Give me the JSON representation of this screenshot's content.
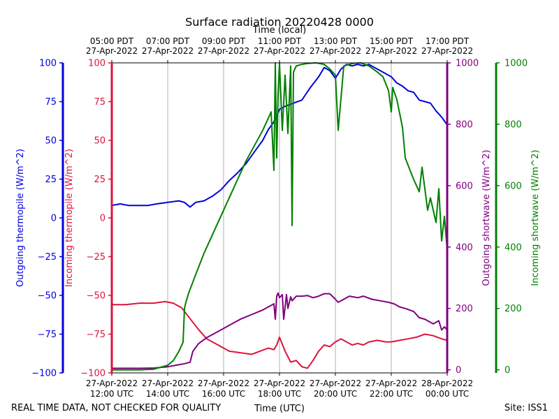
{
  "chart_data": {
    "type": "line",
    "title": "Surface radiation 20220428 0000",
    "top_axis_label": "Time (local)",
    "xlabel": "Time (UTC)",
    "x_unit": "hours UTC (27-Apr-2022)",
    "xlim": [
      12,
      24
    ],
    "top_ticks": [
      {
        "x": 12,
        "line1": "05:00 PDT",
        "line2": "27-Apr-2022"
      },
      {
        "x": 14,
        "line1": "07:00 PDT",
        "line2": "27-Apr-2022"
      },
      {
        "x": 16,
        "line1": "09:00 PDT",
        "line2": "27-Apr-2022"
      },
      {
        "x": 18,
        "line1": "11:00 PDT",
        "line2": "27-Apr-2022"
      },
      {
        "x": 20,
        "line1": "13:00 PDT",
        "line2": "27-Apr-2022"
      },
      {
        "x": 22,
        "line1": "15:00 PDT",
        "line2": "27-Apr-2022"
      },
      {
        "x": 24,
        "line1": "17:00 PDT",
        "line2": "27-Apr-2022"
      }
    ],
    "bottom_ticks": [
      {
        "x": 12,
        "line1": "27-Apr-2022",
        "line2": "12:00 UTC"
      },
      {
        "x": 14,
        "line1": "27-Apr-2022",
        "line2": "14:00 UTC"
      },
      {
        "x": 16,
        "line1": "27-Apr-2022",
        "line2": "16:00 UTC"
      },
      {
        "x": 18,
        "line1": "27-Apr-2022",
        "line2": "18:00 UTC"
      },
      {
        "x": 20,
        "line1": "27-Apr-2022",
        "line2": "20:00 UTC"
      },
      {
        "x": 22,
        "line1": "27-Apr-2022",
        "line2": "22:00 UTC"
      },
      {
        "x": 24,
        "line1": "28-Apr-2022",
        "line2": "00:00 UTC"
      }
    ],
    "axes": [
      {
        "id": "outgoing_thermopile",
        "label": "Outgoing thermopile (W/m^2)",
        "color": "#0000dd",
        "range": [
          -100,
          100
        ],
        "ticks": [
          "100",
          "75",
          "50",
          "25",
          "0",
          "−25",
          "−50",
          "−75",
          "−100"
        ],
        "tick_values": [
          100,
          75,
          50,
          25,
          0,
          -25,
          -50,
          -75,
          -100
        ]
      },
      {
        "id": "incoming_thermopile",
        "label": "Incoming thermopile (W/m^2)",
        "color": "#dc143c",
        "range": [
          -100,
          100
        ],
        "ticks": [
          "100",
          "75",
          "50",
          "25",
          "0",
          "−25",
          "−50",
          "−75",
          "−100"
        ],
        "tick_values": [
          100,
          75,
          50,
          25,
          0,
          -25,
          -50,
          -75,
          -100
        ]
      },
      {
        "id": "outgoing_shortwave",
        "label": "Outgoing shortwave (W/m^2)",
        "color": "#800080",
        "range": [
          -10,
          1000
        ],
        "ticks": [
          "1000",
          "800",
          "600",
          "400",
          "200",
          "0"
        ],
        "tick_values": [
          1000,
          800,
          600,
          400,
          200,
          0
        ]
      },
      {
        "id": "incoming_shortwave",
        "label": "Incoming shortwave (W/m^2)",
        "color": "#008000",
        "range": [
          -10,
          1000
        ],
        "ticks": [
          "1000",
          "800",
          "600",
          "400",
          "200",
          "0"
        ],
        "tick_values": [
          1000,
          800,
          600,
          400,
          200,
          0
        ]
      }
    ],
    "series": [
      {
        "name": "Outgoing thermopile",
        "axis": "outgoing_thermopile",
        "color": "#0000dd",
        "x": [
          12,
          12.3,
          12.6,
          13,
          13.3,
          13.6,
          14,
          14.4,
          14.6,
          14.8,
          15,
          15.3,
          15.6,
          15.9,
          16.2,
          16.5,
          16.8,
          17,
          17.2,
          17.4,
          17.6,
          17.8,
          18,
          18.2,
          18.5,
          18.8,
          19.1,
          19.4,
          19.6,
          19.8,
          20,
          20.2,
          20.4,
          20.6,
          20.8,
          21,
          21.2,
          21.4,
          21.6,
          21.8,
          22,
          22.2,
          22.4,
          22.6,
          22.8,
          23,
          23.2,
          23.4,
          23.6,
          23.8,
          24
        ],
        "y": [
          8,
          9,
          8,
          8,
          8,
          9,
          10,
          11,
          10,
          7,
          10,
          11,
          14,
          18,
          24,
          29,
          35,
          40,
          45,
          50,
          57,
          62,
          70,
          72,
          74,
          76,
          84,
          91,
          97,
          95,
          90,
          96,
          99,
          98,
          99,
          98,
          99,
          97,
          95,
          93,
          91,
          87,
          85,
          82,
          81,
          76,
          75,
          74,
          69,
          65,
          60
        ]
      },
      {
        "name": "Incoming thermopile",
        "axis": "incoming_thermopile",
        "color": "#dc143c",
        "x": [
          12,
          12.5,
          13,
          13.5,
          13.9,
          14.2,
          14.5,
          14.8,
          15.1,
          15.4,
          15.8,
          16.2,
          16.6,
          17,
          17.3,
          17.6,
          17.8,
          17.9,
          18,
          18.2,
          18.4,
          18.6,
          18.8,
          19,
          19.2,
          19.4,
          19.6,
          19.8,
          20,
          20.2,
          20.4,
          20.6,
          20.8,
          21,
          21.2,
          21.5,
          21.8,
          22,
          22.3,
          22.6,
          22.9,
          23.2,
          23.5,
          23.8,
          24
        ],
        "y": [
          -56,
          -56,
          -55,
          -55,
          -54,
          -55,
          -58,
          -65,
          -72,
          -78,
          -82,
          -86,
          -87,
          -88,
          -86,
          -84,
          -85,
          -82,
          -77,
          -86,
          -93,
          -92,
          -96,
          -97,
          -92,
          -86,
          -82,
          -83,
          -80,
          -78,
          -80,
          -82,
          -81,
          -82,
          -80,
          -79,
          -80,
          -80,
          -79,
          -78,
          -77,
          -75,
          -76,
          -78,
          -79
        ]
      },
      {
        "name": "Outgoing shortwave",
        "axis": "outgoing_shortwave",
        "color": "#800080",
        "x": [
          12,
          12.5,
          13,
          13.5,
          14,
          14.3,
          14.6,
          14.8,
          14.9,
          15.1,
          15.4,
          15.8,
          16.2,
          16.6,
          17,
          17.4,
          17.6,
          17.8,
          17.85,
          17.9,
          17.95,
          18,
          18.1,
          18.15,
          18.25,
          18.3,
          18.4,
          18.45,
          18.6,
          18.8,
          19,
          19.2,
          19.4,
          19.6,
          19.8,
          20,
          20.1,
          20.3,
          20.5,
          20.8,
          21,
          21.3,
          21.6,
          21.9,
          22.1,
          22.3,
          22.5,
          22.8,
          23,
          23.2,
          23.5,
          23.7,
          23.8,
          23.9,
          24
        ],
        "y": [
          5,
          5,
          5,
          6,
          10,
          15,
          20,
          25,
          60,
          85,
          105,
          125,
          145,
          165,
          180,
          195,
          205,
          215,
          165,
          240,
          250,
          235,
          245,
          165,
          245,
          200,
          238,
          225,
          240,
          240,
          242,
          235,
          240,
          248,
          248,
          230,
          220,
          230,
          240,
          235,
          240,
          230,
          225,
          220,
          215,
          205,
          200,
          190,
          170,
          165,
          150,
          160,
          130,
          140,
          130
        ]
      },
      {
        "name": "Incoming shortwave",
        "axis": "incoming_shortwave",
        "color": "#008000",
        "x": [
          12,
          12.5,
          13,
          13.5,
          14,
          14.2,
          14.4,
          14.55,
          14.6,
          14.65,
          14.75,
          15,
          15.3,
          15.6,
          15.9,
          16.2,
          16.5,
          16.8,
          17.1,
          17.4,
          17.7,
          17.8,
          17.85,
          17.9,
          17.95,
          18,
          18.1,
          18.2,
          18.3,
          18.4,
          18.45,
          18.5,
          18.6,
          18.8,
          19,
          19.3,
          19.6,
          19.8,
          20,
          20.1,
          20.3,
          20.6,
          20.9,
          21.2,
          21.5,
          21.7,
          21.9,
          22,
          22.05,
          22.2,
          22.4,
          22.5,
          22.8,
          23,
          23.1,
          23.3,
          23.4,
          23.6,
          23.7,
          23.8,
          23.9,
          24
        ],
        "y": [
          0,
          0,
          0,
          2,
          15,
          30,
          60,
          90,
          200,
          220,
          250,
          310,
          380,
          440,
          500,
          560,
          620,
          680,
          730,
          780,
          840,
          650,
          1000,
          690,
          900,
          1000,
          780,
          960,
          770,
          990,
          470,
          970,
          990,
          995,
          998,
          1000,
          995,
          980,
          960,
          780,
          990,
          998,
          1000,
          990,
          970,
          955,
          910,
          840,
          920,
          880,
          790,
          690,
          620,
          580,
          660,
          520,
          560,
          480,
          590,
          420,
          500,
          390
        ]
      }
    ],
    "footer_left": "REAL TIME DATA, NOT CHECKED FOR QUALITY",
    "footer_right": "Site: ISS1"
  }
}
